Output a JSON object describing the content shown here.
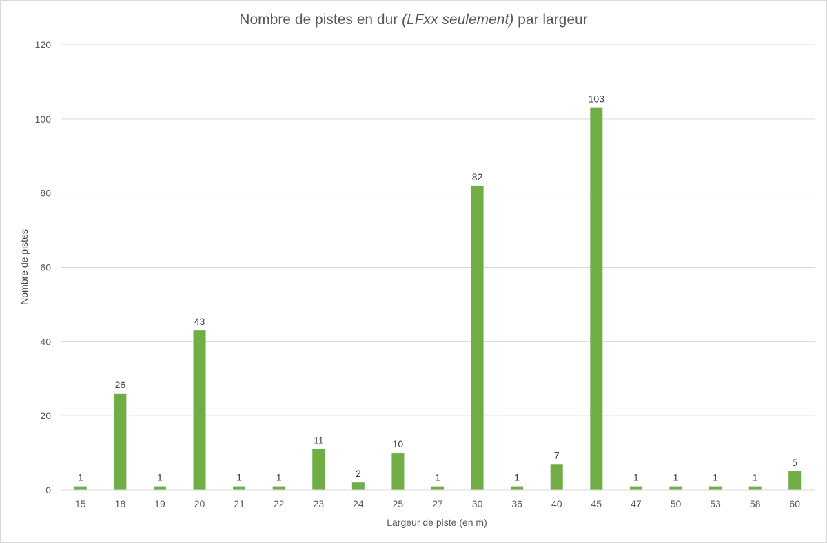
{
  "chart_data": {
    "type": "bar",
    "title_main": "Nombre de pistes en dur ",
    "title_italic": "(LFxx seulement)",
    "title_tail": " par largeur",
    "xlabel": "Largeur de piste (en m)",
    "ylabel": "Nombre de pistes",
    "categories": [
      "15",
      "18",
      "19",
      "20",
      "21",
      "22",
      "23",
      "24",
      "25",
      "27",
      "30",
      "36",
      "40",
      "45",
      "47",
      "50",
      "53",
      "58",
      "60"
    ],
    "values": [
      1,
      26,
      1,
      43,
      1,
      1,
      11,
      2,
      10,
      1,
      82,
      1,
      7,
      103,
      1,
      1,
      1,
      1,
      5
    ],
    "ylim": [
      0,
      120
    ],
    "yticks": [
      0,
      20,
      40,
      60,
      80,
      100,
      120
    ],
    "bar_color": "#70ad47",
    "grid": true,
    "data_labels": true
  }
}
